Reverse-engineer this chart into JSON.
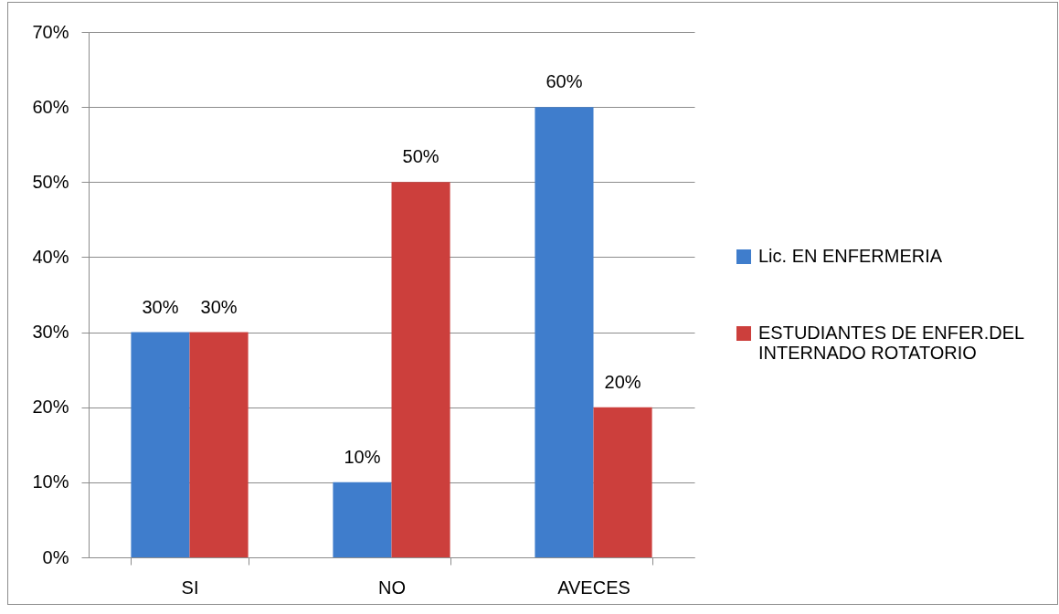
{
  "chart_data": {
    "type": "bar",
    "categories": [
      "SI",
      "NO",
      "AVECES"
    ],
    "series": [
      {
        "name": "Lic. EN ENFERMERIA",
        "color": "#3f7dcc",
        "values": [
          30,
          10,
          60
        ],
        "value_labels": [
          "30%",
          "10%",
          "60%"
        ]
      },
      {
        "name": "ESTUDIANTES DE ENFER.DEL INTERNADO ROTATORIO",
        "color": "#cc3f3c",
        "values": [
          30,
          50,
          20
        ],
        "value_labels": [
          "30%",
          "50%",
          "20%"
        ]
      }
    ],
    "ylim": [
      0,
      70
    ],
    "yticks": [
      {
        "value": 0,
        "label": "0%"
      },
      {
        "value": 10,
        "label": "10%"
      },
      {
        "value": 20,
        "label": "20%"
      },
      {
        "value": 30,
        "label": "30%"
      },
      {
        "value": 40,
        "label": "40%"
      },
      {
        "value": 50,
        "label": "50%"
      },
      {
        "value": 60,
        "label": "60%"
      },
      {
        "value": 70,
        "label": "70%"
      }
    ],
    "grid": "y",
    "legend": "right"
  }
}
